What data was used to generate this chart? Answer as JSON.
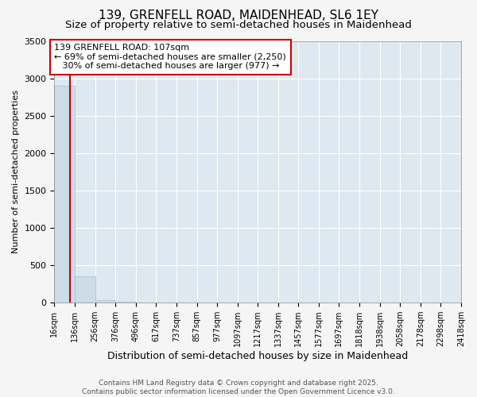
{
  "title": "139, GRENFELL ROAD, MAIDENHEAD, SL6 1EY",
  "subtitle": "Size of property relative to semi-detached houses in Maidenhead",
  "xlabel": "Distribution of semi-detached houses by size in Maidenhead",
  "ylabel": "Number of semi-detached properties",
  "ylim": [
    0,
    3500
  ],
  "yticks": [
    0,
    500,
    1000,
    1500,
    2000,
    2500,
    3000,
    3500
  ],
  "bar_edges": [
    16,
    136,
    256,
    376,
    496,
    617,
    737,
    857,
    977,
    1097,
    1217,
    1337,
    1457,
    1577,
    1697,
    1818,
    1938,
    2058,
    2178,
    2298,
    2418
  ],
  "bar_heights": [
    2900,
    350,
    30,
    10,
    5,
    3,
    2,
    2,
    1,
    1,
    1,
    1,
    0,
    0,
    0,
    0,
    0,
    0,
    0,
    0
  ],
  "bar_color": "#ccdce8",
  "bar_edgecolor": "#aac0d4",
  "property_size": 107,
  "vline_color": "#cc0000",
  "annotation_line1": "139 GRENFELL ROAD: 107sqm",
  "annotation_line2": "← 69% of semi-detached houses are smaller (2,250)",
  "annotation_line3": "   30% of semi-detached houses are larger (977) →",
  "annotation_box_color": "#cc0000",
  "background_color": "#f5f5f5",
  "plot_background": "#dde8f0",
  "footer_text": "Contains HM Land Registry data © Crown copyright and database right 2025.\nContains public sector information licensed under the Open Government Licence v3.0.",
  "title_fontsize": 11,
  "subtitle_fontsize": 9.5,
  "annotation_fontsize": 8,
  "ylabel_fontsize": 8,
  "xlabel_fontsize": 9,
  "tick_fontsize": 7,
  "footer_fontsize": 6.5
}
